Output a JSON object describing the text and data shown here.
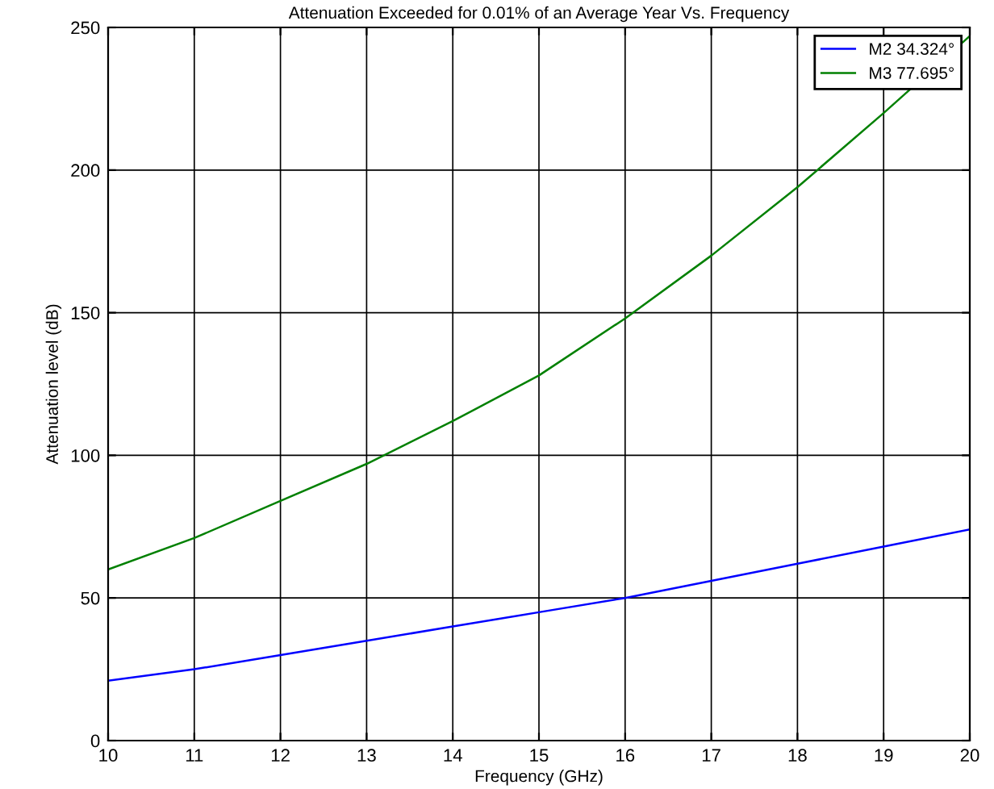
{
  "chart_data": {
    "type": "line",
    "title": "Attenuation Exceeded for 0.01% of an Average Year Vs. Frequency",
    "xlabel": "Frequency (GHz)",
    "ylabel": "Attenuation level (dB)",
    "x": [
      10,
      11,
      12,
      13,
      14,
      15,
      16,
      17,
      18,
      19,
      20
    ],
    "series": [
      {
        "name": "M2 34.324°",
        "color": "#0000ff",
        "values": [
          21,
          25,
          30,
          35,
          40,
          45,
          50,
          56,
          62,
          68,
          74
        ]
      },
      {
        "name": "M3 77.695°",
        "color": "#008000",
        "values": [
          60,
          71,
          84,
          97,
          112,
          128,
          148,
          170,
          194,
          220,
          247
        ]
      }
    ],
    "xlim": [
      10,
      20
    ],
    "xticks": [
      10,
      11,
      12,
      13,
      14,
      15,
      16,
      17,
      18,
      19,
      20
    ],
    "ylim": [
      0,
      250
    ],
    "yticks": [
      0,
      50,
      100,
      150,
      200,
      250
    ],
    "grid": true,
    "legend": "top right",
    "marker": "none",
    "line_style": "solid"
  }
}
